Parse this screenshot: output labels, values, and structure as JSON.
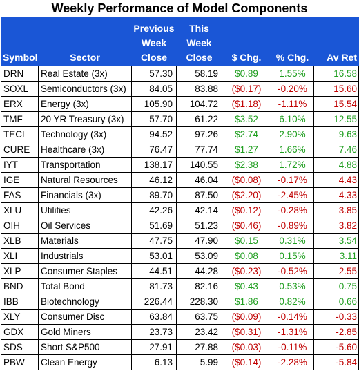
{
  "title": "Weekly Performance of Model Components",
  "headers": {
    "symbol": "Symbol",
    "sector": "Sector",
    "prev": [
      "Previous",
      "Week",
      "Close"
    ],
    "this": [
      "This",
      "Week",
      "Close"
    ],
    "chg": "$ Chg.",
    "pct": "% Chg.",
    "av": "Av Ret"
  },
  "colors": {
    "header_bg": "#1a56d6",
    "positive": "#1f9e1f",
    "negative": "#c00000"
  },
  "rows": [
    {
      "symbol": "DRN",
      "sector": "Real Estate (3x)",
      "prev": "57.30",
      "this": "58.19",
      "chg": "$0.89",
      "pct": "1.55%",
      "av": "16.58",
      "dir": "pos"
    },
    {
      "symbol": "SOXL",
      "sector": "Semiconductors (3x)",
      "prev": "84.05",
      "this": "83.88",
      "chg": "($0.17)",
      "pct": "-0.20%",
      "av": "15.60",
      "dir": "neg"
    },
    {
      "symbol": "ERX",
      "sector": "Energy (3x)",
      "prev": "105.90",
      "this": "104.72",
      "chg": "($1.18)",
      "pct": "-1.11%",
      "av": "15.54",
      "dir": "neg"
    },
    {
      "symbol": "TMF",
      "sector": "20 YR Treasury (3x)",
      "prev": "57.70",
      "this": "61.22",
      "chg": "$3.52",
      "pct": "6.10%",
      "av": "12.55",
      "dir": "pos"
    },
    {
      "symbol": "TECL",
      "sector": "Technology (3x)",
      "prev": "94.52",
      "this": "97.26",
      "chg": "$2.74",
      "pct": "2.90%",
      "av": "9.63",
      "dir": "pos"
    },
    {
      "symbol": "CURE",
      "sector": "Healthcare (3x)",
      "prev": "76.47",
      "this": "77.74",
      "chg": "$1.27",
      "pct": "1.66%",
      "av": "7.46",
      "dir": "pos"
    },
    {
      "symbol": "IYT",
      "sector": "Transportation",
      "prev": "138.17",
      "this": "140.55",
      "chg": "$2.38",
      "pct": "1.72%",
      "av": "4.88",
      "dir": "pos"
    },
    {
      "symbol": "IGE",
      "sector": "Natural Resources",
      "prev": "46.12",
      "this": "46.04",
      "chg": "($0.08)",
      "pct": "-0.17%",
      "av": "4.43",
      "dir": "neg"
    },
    {
      "symbol": "FAS",
      "sector": "Financials (3x)",
      "prev": "89.70",
      "this": "87.50",
      "chg": "($2.20)",
      "pct": "-2.45%",
      "av": "4.33",
      "dir": "neg"
    },
    {
      "symbol": "XLU",
      "sector": "Utilities",
      "prev": "42.26",
      "this": "42.14",
      "chg": "($0.12)",
      "pct": "-0.28%",
      "av": "3.85",
      "dir": "neg"
    },
    {
      "symbol": "OIH",
      "sector": "Oil Services",
      "prev": "51.69",
      "this": "51.23",
      "chg": "($0.46)",
      "pct": "-0.89%",
      "av": "3.82",
      "dir": "neg"
    },
    {
      "symbol": "XLB",
      "sector": "Materials",
      "prev": "47.75",
      "this": "47.90",
      "chg": "$0.15",
      "pct": "0.31%",
      "av": "3.54",
      "dir": "pos"
    },
    {
      "symbol": "XLI",
      "sector": "Industrials",
      "prev": "53.01",
      "this": "53.09",
      "chg": "$0.08",
      "pct": "0.15%",
      "av": "3.11",
      "dir": "pos"
    },
    {
      "symbol": "XLP",
      "sector": "Consumer Staples",
      "prev": "44.51",
      "this": "44.28",
      "chg": "($0.23)",
      "pct": "-0.52%",
      "av": "2.55",
      "dir": "neg"
    },
    {
      "symbol": "BND",
      "sector": "Total Bond",
      "prev": "81.73",
      "this": "82.16",
      "chg": "$0.43",
      "pct": "0.53%",
      "av": "0.75",
      "dir": "pos"
    },
    {
      "symbol": "IBB",
      "sector": "Biotechnology",
      "prev": "226.44",
      "this": "228.30",
      "chg": "$1.86",
      "pct": "0.82%",
      "av": "0.66",
      "dir": "pos"
    },
    {
      "symbol": "XLY",
      "sector": "Consumer Disc",
      "prev": "63.84",
      "this": "63.75",
      "chg": "($0.09)",
      "pct": "-0.14%",
      "av": "-0.33",
      "dir": "neg"
    },
    {
      "symbol": "GDX",
      "sector": "Gold Miners",
      "prev": "23.73",
      "this": "23.42",
      "chg": "($0.31)",
      "pct": "-1.31%",
      "av": "-2.85",
      "dir": "neg"
    },
    {
      "symbol": "SDS",
      "sector": "Short S&P500",
      "prev": "27.91",
      "this": "27.88",
      "chg": "($0.03)",
      "pct": "-0.11%",
      "av": "-5.60",
      "dir": "neg"
    },
    {
      "symbol": "PBW",
      "sector": "Clean Energy",
      "prev": "6.13",
      "this": "5.99",
      "chg": "($0.14)",
      "pct": "-2.28%",
      "av": "-5.84",
      "dir": "neg"
    }
  ]
}
